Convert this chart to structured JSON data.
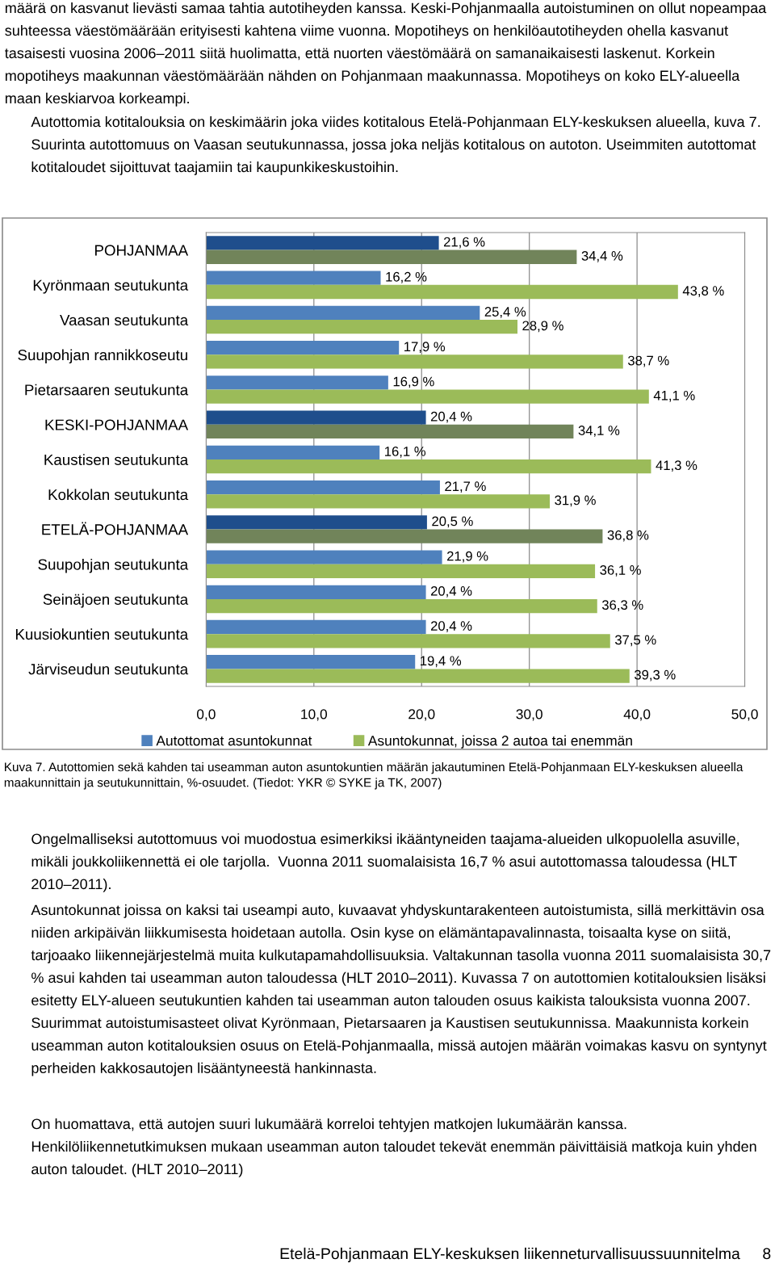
{
  "chart_data": {
    "type": "bar",
    "orientation": "horizontal",
    "categories": [
      "POHJANMAA",
      "Kyrönmaan seutukunta",
      "Vaasan seutukunta",
      "Suupohjan rannikkoseutu",
      "Pietarsaaren seutukunta",
      "KESKI-POHJANMAA",
      "Kaustisen seutukunta",
      "Kokkolan seutukunta",
      "ETELÄ-POHJANMAA",
      "Suupohjan seutukunta",
      "Seinäjoen seutukunta",
      "Kuusiokuntien seutukunta",
      "Järviseudun seutukunta"
    ],
    "series": [
      {
        "name": "Autottomat asuntokunnat",
        "color": "#4f81bd",
        "colors": [
          "#1f4e8c",
          "#4f81bd",
          "#4f81bd",
          "#4f81bd",
          "#4f81bd",
          "#1f4e8c",
          "#4f81bd",
          "#4f81bd",
          "#1f4e8c",
          "#4f81bd",
          "#4f81bd",
          "#4f81bd",
          "#4f81bd"
        ],
        "values": [
          21.6,
          16.2,
          25.4,
          17.9,
          16.9,
          20.4,
          16.1,
          21.7,
          20.5,
          21.9,
          20.4,
          20.4,
          19.4
        ],
        "value_labels": [
          "21,6 %",
          "16,2 %",
          "25,4 %",
          "17,9 %",
          "16,9 %",
          "20,4 %",
          "16,1 %",
          "21,7 %",
          "20,5 %",
          "21,9 %",
          "20,4 %",
          "20,4 %",
          "19,4 %"
        ]
      },
      {
        "name": "Asuntokunnat, joissa 2 autoa tai enemmän",
        "color": "#9bbb59",
        "colors": [
          "#71845a",
          "#9bbb59",
          "#9bbb59",
          "#9bbb59",
          "#9bbb59",
          "#71845a",
          "#9bbb59",
          "#9bbb59",
          "#71845a",
          "#9bbb59",
          "#9bbb59",
          "#9bbb59",
          "#9bbb59"
        ],
        "values": [
          34.4,
          43.8,
          28.9,
          38.7,
          41.1,
          34.1,
          41.3,
          31.9,
          36.8,
          36.1,
          36.3,
          37.5,
          39.3
        ],
        "value_labels": [
          "34,4 %",
          "43,8 %",
          "28,9 %",
          "38,7 %",
          "41,1 %",
          "34,1 %",
          "41,3 %",
          "31,9 %",
          "36,8 %",
          "36,1 %",
          "36,3 %",
          "37,5 %",
          "39,3 %"
        ]
      }
    ],
    "xlim": [
      0,
      50
    ],
    "xticks": [
      {
        "value": 0,
        "label": "0,0"
      },
      {
        "value": 10,
        "label": "10,0"
      },
      {
        "value": 20,
        "label": "20,0"
      },
      {
        "value": 30,
        "label": "30,0"
      },
      {
        "value": 40,
        "label": "40,0"
      },
      {
        "value": 50,
        "label": "50,0"
      }
    ],
    "grid": "x",
    "legend": "bottom",
    "annotations": [
      "määrä on kasvanut lievästi samaa tahtia autotiheyden kanssa. Keski-Pohjanmaalla autoistuminen on ollut nopeampaa suhteessa väestömäärään erityisesti kahtena viime vuonna. Mopotiheys on henkilöautotiheyden ohella kasvanut tasaisesti vuosina 2006–2011 siitä huolimatta, että nuorten väestömäärä on samanaikaisesti laskenut. Korkein mopotiheys maakunnan väestömäärään nähden on Pohjanmaan maakunnassa. Mopotiheys on koko ELY-alueella maan keskiarvoa korkeampi.",
      "Autottomia kotitalouksia on keskimäärin joka viides kotitalous Etelä-Pohjanmaan ELY-keskuksen alueella, kuva 7. Suurinta autottomuus on Vaasan seutukunnassa, jossa joka neljäs kotitalous on autoton. Useimmiten autottomat kotitaloudet sijoittuvat taajamiin tai kaupunkikeskustoihin.",
      "Kuva 7. Autottomien sekä kahden tai useamman auton asuntokuntien määrän jakautuminen Etelä-Pohjanmaan ELY-keskuksen alueella maakunnittain ja seutukunnittain, %-osuudet. (Tiedot: YKR © SYKE ja TK, 2007)",
      "Ongelmalliseksi autottomuus voi muodostua esimerkiksi ikääntyneiden taajama-alueiden ulkopuolella asuville, mikäli joukkoliikennettä ei ole tarjolla.  Vuonna 2011 suomalaisista 16,7 % asui autottomassa taloudessa (HLT 2010–2011).",
      "Asuntokunnat joissa on kaksi tai useampi auto, kuvaavat yhdyskuntarakenteen autoistumista, sillä merkittävin osa niiden arkipäivän liikkumisesta hoidetaan autolla. Osin kyse on elämäntapavalinnasta, toisaalta kyse on siitä, tarjoaako liikennejärjestelmä muita kulkutapamahdollisuuksia. Valtakunnan tasolla vuonna 2011 suomalaisista 30,7 % asui kahden tai useamman auton taloudessa (HLT 2010–2011). Kuvassa 7 on autottomien kotitalouksien lisäksi esitetty ELY-alueen seutukuntien kahden tai useamman auton talouden osuus kaikista talouksista vuonna 2007. Suurimmat autoistumisasteet olivat Kyrönmaan, Pietarsaaren ja Kaustisen seutukunnissa. Maakunnista korkein useamman auton kotitalouksien osuus on Etelä-Pohjanmaalla, missä autojen määrän voimakas kasvu on syntynyt perheiden kakkosautojen lisääntyneestä hankinnasta.",
      "On huomattava, että autojen suuri lukumäärä korreloi tehtyjen matkojen lukumäärän kanssa. Henkilöliikennetutkimuksen mukaan useamman auton taloudet tekevät enemmän päivittäisiä matkoja kuin yhden auton taloudet. (HLT 2010–2011)",
      "Etelä-Pohjanmaan ELY-keskuksen liikenneturvallisuussuunnitelma",
      "8"
    ]
  }
}
